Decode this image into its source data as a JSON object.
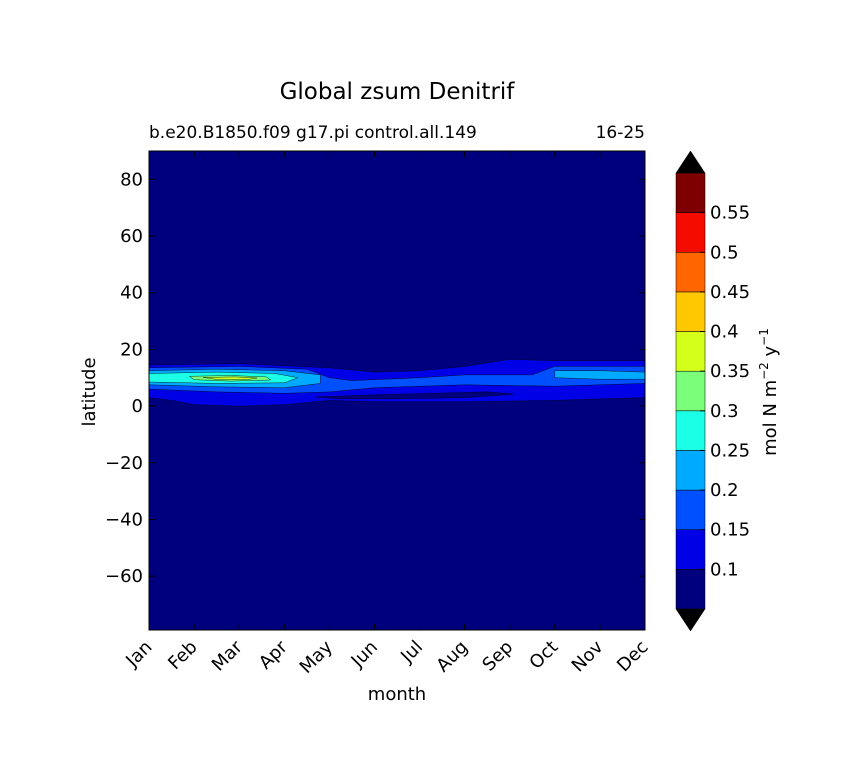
{
  "chart_data": {
    "type": "contour",
    "title": "Global zsum Denitrif",
    "subtitle_left": "b.e20.B1850.f09 g17.pi control.all.149",
    "subtitle_right": "16-25",
    "xlabel": "month",
    "ylabel": "latitude",
    "x_categories": [
      "Jan",
      "Feb",
      "Mar",
      "Apr",
      "May",
      "Jun",
      "Jul",
      "Aug",
      "Sep",
      "Oct",
      "Nov",
      "Dec"
    ],
    "ylim": [
      -79,
      90
    ],
    "y_ticks": [
      -60,
      -40,
      -20,
      0,
      20,
      40,
      60,
      80
    ],
    "y_tick_labels": [
      "−60",
      "−40",
      "−20",
      "0",
      "20",
      "40",
      "60",
      "80"
    ],
    "colorbar": {
      "label_main": "mol N m",
      "label_exp1": "−2",
      "label_mid": " y",
      "label_exp2": "−1",
      "levels": [
        0.05,
        0.1,
        0.15,
        0.2,
        0.25,
        0.3,
        0.35,
        0.4,
        0.45,
        0.5,
        0.55,
        0.6
      ],
      "tick_values": [
        0.1,
        0.15,
        0.2,
        0.25,
        0.3,
        0.35,
        0.4,
        0.45,
        0.5,
        0.55
      ],
      "tick_labels": [
        "0.1",
        "0.15",
        "0.2",
        "0.25",
        "0.3",
        "0.35",
        "0.4",
        "0.45",
        "0.5",
        "0.55"
      ],
      "colors": [
        "#00007f",
        "#0000e6",
        "#0050ff",
        "#00aaff",
        "#1affe6",
        "#7bff7b",
        "#d4ff1a",
        "#ffc800",
        "#ff6600",
        "#f50b00",
        "#7f0000"
      ],
      "under_color": "#000000",
      "over_color": "#000000"
    },
    "background_level_color": "#00007f",
    "regions": [
      {
        "level": 1,
        "color": "#0000e6",
        "points": [
          [
            0,
            14.5
          ],
          [
            2,
            15
          ],
          [
            4,
            13.5
          ],
          [
            5,
            12
          ],
          [
            6,
            12.5
          ],
          [
            7,
            14
          ],
          [
            8,
            16.5
          ],
          [
            9,
            16
          ],
          [
            11,
            16
          ],
          [
            11,
            3
          ],
          [
            9,
            2
          ],
          [
            7,
            1.5
          ],
          [
            5,
            1.5
          ],
          [
            4,
            2
          ],
          [
            3,
            0.5
          ],
          [
            2,
            0
          ],
          [
            1,
            0.5
          ],
          [
            0.5,
            2
          ],
          [
            0,
            3
          ]
        ]
      },
      {
        "level": 2,
        "color": "#0050ff",
        "points": [
          [
            0,
            13.5
          ],
          [
            2,
            14
          ],
          [
            3.5,
            13
          ],
          [
            4,
            10
          ],
          [
            4.5,
            9
          ],
          [
            6,
            10
          ],
          [
            7,
            11
          ],
          [
            8.5,
            11
          ],
          [
            9,
            14
          ],
          [
            11,
            14
          ],
          [
            11,
            8
          ],
          [
            9,
            7
          ],
          [
            7,
            7.5
          ],
          [
            5,
            6.5
          ],
          [
            4,
            5
          ],
          [
            3,
            4.5
          ],
          [
            1.5,
            5
          ],
          [
            0,
            6
          ]
        ]
      },
      {
        "level": 3,
        "color": "#00aaff",
        "points": [
          [
            0,
            12.5
          ],
          [
            1.5,
            13
          ],
          [
            3,
            12.5
          ],
          [
            3.8,
            11
          ],
          [
            3.8,
            8
          ],
          [
            3,
            6.5
          ],
          [
            1.5,
            6.8
          ],
          [
            0,
            7.5
          ]
        ]
      },
      {
        "level": 3,
        "color": "#00aaff",
        "points": [
          [
            9,
            12.5
          ],
          [
            10,
            12.5
          ],
          [
            11,
            12
          ],
          [
            11,
            9.5
          ],
          [
            10,
            9.5
          ],
          [
            9,
            10
          ]
        ]
      },
      {
        "level": 4,
        "color": "#1affe6",
        "points": [
          [
            0,
            11.5
          ],
          [
            1.5,
            12
          ],
          [
            2.8,
            11.5
          ],
          [
            3.3,
            10
          ],
          [
            3,
            8.2
          ],
          [
            1.5,
            8
          ],
          [
            0,
            8.5
          ]
        ]
      },
      {
        "level": 5,
        "color": "#7bff7b",
        "points": [
          [
            0.9,
            10.5
          ],
          [
            1.8,
            10.8
          ],
          [
            2.6,
            10.3
          ],
          [
            2.7,
            9.2
          ],
          [
            1.8,
            8.8
          ],
          [
            1,
            9.3
          ]
        ]
      },
      {
        "level": 6,
        "color": "#d4ff1a",
        "points": [
          [
            1.2,
            10.1
          ],
          [
            1.9,
            10.3
          ],
          [
            2.4,
            9.9
          ],
          [
            2.2,
            9.4
          ],
          [
            1.5,
            9.4
          ]
        ]
      }
    ],
    "deep_patches": [
      {
        "color": "#00007f",
        "points": [
          [
            3.7,
            3.2
          ],
          [
            5,
            4
          ],
          [
            6.5,
            4.6
          ],
          [
            7.5,
            5
          ],
          [
            8.1,
            4.2
          ],
          [
            7,
            3
          ],
          [
            5.5,
            2.6
          ],
          [
            4.2,
            2.6
          ]
        ]
      }
    ]
  }
}
